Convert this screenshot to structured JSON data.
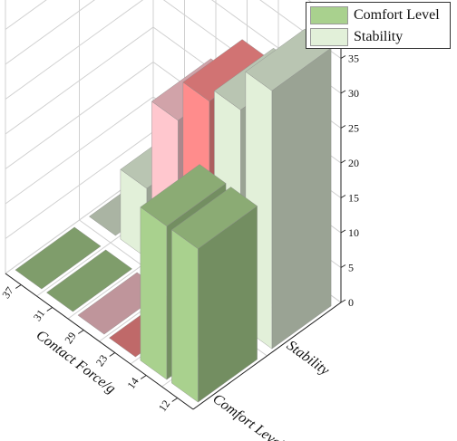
{
  "chart_data": {
    "type": "bar3d",
    "x_categories": [
      "37",
      "31",
      "29",
      "23",
      "14",
      "12"
    ],
    "y_categories": [
      "Comfort Level",
      "Stability"
    ],
    "series": [
      {
        "name": "Comfort Level",
        "values": [
          22,
          22,
          0,
          0,
          0,
          0
        ]
      },
      {
        "name": "Stability",
        "values": [
          37,
          31,
          29,
          23,
          10,
          0
        ]
      }
    ],
    "xlabel": "Contact Force/g",
    "zlim": [
      0,
      40
    ],
    "z_ticks": [
      "0",
      "5",
      "10",
      "15",
      "20",
      "25",
      "30",
      "35",
      "40"
    ],
    "colors": {
      "comfort_green": "#a9d18e",
      "stability_green": "#e2f0d9",
      "red": "#ff8c8c",
      "pink": "#ffc7ce"
    },
    "legend_position": "top-right"
  },
  "legend": {
    "items": [
      {
        "label": "Comfort Level",
        "color": "#a9d18e"
      },
      {
        "label": "Stability",
        "color": "#e2f0d9"
      }
    ]
  }
}
